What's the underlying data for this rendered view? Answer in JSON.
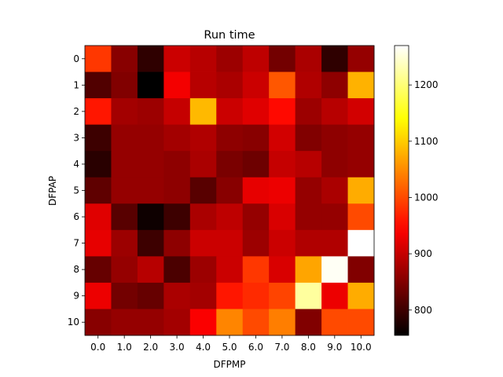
{
  "chart_data": {
    "type": "heatmap",
    "title": "Run time",
    "xlabel": "DFPMP",
    "ylabel": "DFPAP",
    "x_ticks": [
      "0.0",
      "1.0",
      "2.0",
      "3.0",
      "4.0",
      "5.0",
      "6.0",
      "7.0",
      "8.0",
      "9.0",
      "10.0"
    ],
    "y_ticks": [
      "0",
      "1",
      "2",
      "3",
      "4",
      "5",
      "6",
      "7",
      "8",
      "9",
      "10"
    ],
    "colormap": "hot",
    "color_range": [
      755,
      1270
    ],
    "colorbar_ticks": [
      800,
      900,
      1000,
      1100,
      1200
    ],
    "values": [
      [
        985,
        855,
        790,
        905,
        890,
        870,
        895,
        840,
        880,
        790,
        865
      ],
      [
        815,
        850,
        755,
        935,
        890,
        880,
        905,
        1010,
        885,
        860,
        1080
      ],
      [
        960,
        875,
        870,
        900,
        1085,
        905,
        920,
        950,
        870,
        890,
        910
      ],
      [
        800,
        865,
        865,
        875,
        885,
        860,
        855,
        910,
        850,
        860,
        865
      ],
      [
        785,
        865,
        865,
        860,
        880,
        845,
        835,
        900,
        890,
        860,
        865
      ],
      [
        825,
        865,
        865,
        860,
        820,
        855,
        925,
        930,
        865,
        880,
        1075
      ],
      [
        920,
        820,
        765,
        800,
        880,
        895,
        865,
        915,
        865,
        865,
        1000
      ],
      [
        925,
        870,
        800,
        860,
        905,
        905,
        870,
        905,
        885,
        885,
        1270
      ],
      [
        830,
        865,
        890,
        810,
        870,
        905,
        985,
        915,
        1070,
        1265,
        850
      ],
      [
        930,
        840,
        830,
        880,
        875,
        960,
        975,
        995,
        1220,
        930,
        1075
      ],
      [
        855,
        865,
        865,
        875,
        940,
        1045,
        1000,
        1040,
        850,
        1000,
        1000
      ]
    ]
  }
}
